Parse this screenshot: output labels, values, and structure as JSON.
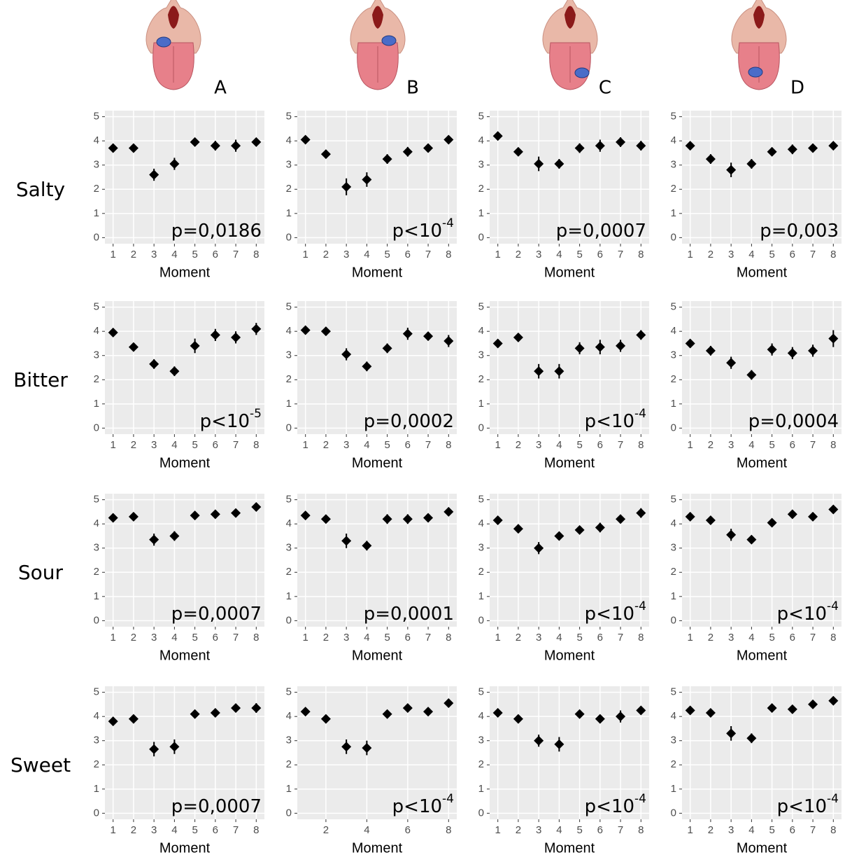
{
  "column_labels": [
    "A",
    "B",
    "C",
    "D"
  ],
  "row_labels": [
    "Salty",
    "Bitter",
    "Sour",
    "Sweet"
  ],
  "chart_data": [
    {
      "type": "errorbar",
      "x": [
        1,
        2,
        3,
        4,
        5,
        6,
        7,
        8
      ],
      "values": [
        3.7,
        3.7,
        2.6,
        3.05,
        3.95,
        3.8,
        3.8,
        3.95
      ],
      "errors": [
        0.15,
        0.15,
        0.25,
        0.25,
        0.1,
        0.2,
        0.25,
        0.15
      ],
      "xlabel": "Moment",
      "xlim": [
        0.6,
        8.4
      ],
      "ylim": [
        -0.25,
        5.25
      ],
      "xticks": [
        1,
        2,
        3,
        4,
        5,
        6,
        7,
        8
      ],
      "yticks": [
        0,
        1,
        2,
        3,
        4,
        5
      ],
      "annotation": "p=0,0186",
      "color": "#000000",
      "grid": true
    },
    {
      "type": "errorbar",
      "x": [
        1,
        2,
        3,
        4,
        5,
        6,
        7,
        8
      ],
      "values": [
        4.05,
        3.45,
        2.1,
        2.4,
        3.25,
        3.55,
        3.7,
        4.05
      ],
      "errors": [
        0.1,
        0.15,
        0.35,
        0.3,
        0.2,
        0.2,
        0.1,
        0.15
      ],
      "xlabel": "Moment",
      "xlim": [
        0.6,
        8.4
      ],
      "ylim": [
        -0.25,
        5.25
      ],
      "xticks": [
        1,
        2,
        3,
        4,
        5,
        6,
        7,
        8
      ],
      "yticks": [
        0,
        1,
        2,
        3,
        4,
        5
      ],
      "annotation": "p<10",
      "annotation_sup": "-4",
      "color": "#000000",
      "grid": true
    },
    {
      "type": "errorbar",
      "x": [
        1,
        2,
        3,
        4,
        5,
        6,
        7,
        8
      ],
      "values": [
        4.2,
        3.55,
        3.05,
        3.05,
        3.7,
        3.8,
        3.95,
        3.8
      ],
      "errors": [
        0.1,
        0.15,
        0.3,
        0.2,
        0.2,
        0.25,
        0.2,
        0.2
      ],
      "xlabel": "Moment",
      "xlim": [
        0.6,
        8.4
      ],
      "ylim": [
        -0.25,
        5.25
      ],
      "xticks": [
        1,
        2,
        3,
        4,
        5,
        6,
        7,
        8
      ],
      "yticks": [
        0,
        1,
        2,
        3,
        4,
        5
      ],
      "annotation": "p=0,0007",
      "color": "#000000",
      "grid": true
    },
    {
      "type": "errorbar",
      "x": [
        1,
        2,
        3,
        4,
        5,
        6,
        7,
        8
      ],
      "values": [
        3.8,
        3.25,
        2.8,
        3.05,
        3.55,
        3.65,
        3.7,
        3.8
      ],
      "errors": [
        0.1,
        0.2,
        0.3,
        0.2,
        0.15,
        0.2,
        0.15,
        0.15
      ],
      "xlabel": "Moment",
      "xlim": [
        0.6,
        8.4
      ],
      "ylim": [
        -0.25,
        5.25
      ],
      "xticks": [
        1,
        2,
        3,
        4,
        5,
        6,
        7,
        8
      ],
      "yticks": [
        0,
        1,
        2,
        3,
        4,
        5
      ],
      "annotation": "p=0,003",
      "color": "#000000",
      "grid": true
    },
    {
      "type": "errorbar",
      "x": [
        1,
        2,
        3,
        4,
        5,
        6,
        7,
        8
      ],
      "values": [
        3.95,
        3.35,
        2.65,
        2.35,
        3.4,
        3.85,
        3.75,
        4.1
      ],
      "errors": [
        0.15,
        0.15,
        0.2,
        0.2,
        0.3,
        0.25,
        0.25,
        0.25
      ],
      "xlabel": "Moment",
      "xlim": [
        0.6,
        8.4
      ],
      "ylim": [
        -0.25,
        5.25
      ],
      "xticks": [
        1,
        2,
        3,
        4,
        5,
        6,
        7,
        8
      ],
      "yticks": [
        0,
        1,
        2,
        3,
        4,
        5
      ],
      "annotation": "p<10",
      "annotation_sup": "-5",
      "color": "#000000",
      "grid": true
    },
    {
      "type": "errorbar",
      "x": [
        1,
        2,
        3,
        4,
        5,
        6,
        7,
        8
      ],
      "values": [
        4.05,
        4.0,
        3.05,
        2.55,
        3.3,
        3.9,
        3.8,
        3.6
      ],
      "errors": [
        0.1,
        0.15,
        0.25,
        0.2,
        0.2,
        0.25,
        0.15,
        0.25
      ],
      "xlabel": "Moment",
      "xlim": [
        0.6,
        8.4
      ],
      "ylim": [
        -0.25,
        5.25
      ],
      "xticks": [
        1,
        2,
        3,
        4,
        5,
        6,
        7,
        8
      ],
      "yticks": [
        0,
        1,
        2,
        3,
        4,
        5
      ],
      "annotation": "p=0,0002",
      "color": "#000000",
      "grid": true
    },
    {
      "type": "errorbar",
      "x": [
        1,
        2,
        3,
        4,
        5,
        6,
        7,
        8
      ],
      "values": [
        3.5,
        3.75,
        2.35,
        2.35,
        3.3,
        3.35,
        3.4,
        3.85
      ],
      "errors": [
        0.15,
        0.1,
        0.3,
        0.3,
        0.25,
        0.3,
        0.25,
        0.2
      ],
      "xlabel": "Moment",
      "xlim": [
        0.6,
        8.4
      ],
      "ylim": [
        -0.25,
        5.25
      ],
      "xticks": [
        1,
        2,
        3,
        4,
        5,
        6,
        7,
        8
      ],
      "yticks": [
        0,
        1,
        2,
        3,
        4,
        5
      ],
      "annotation": "p<10",
      "annotation_sup": "-4",
      "color": "#000000",
      "grid": true
    },
    {
      "type": "errorbar",
      "x": [
        1,
        2,
        3,
        4,
        5,
        6,
        7,
        8
      ],
      "values": [
        3.5,
        3.2,
        2.7,
        2.2,
        3.25,
        3.1,
        3.2,
        3.7
      ],
      "errors": [
        0.15,
        0.2,
        0.25,
        0.2,
        0.25,
        0.25,
        0.25,
        0.35
      ],
      "xlabel": "Moment",
      "xlim": [
        0.6,
        8.4
      ],
      "ylim": [
        -0.25,
        5.25
      ],
      "xticks": [
        1,
        2,
        3,
        4,
        5,
        6,
        7,
        8
      ],
      "yticks": [
        0,
        1,
        2,
        3,
        4,
        5
      ],
      "annotation": "p=0,0004",
      "color": "#000000",
      "grid": true
    },
    {
      "type": "errorbar",
      "x": [
        1,
        2,
        3,
        4,
        5,
        6,
        7,
        8
      ],
      "values": [
        4.25,
        4.3,
        3.35,
        3.5,
        4.35,
        4.4,
        4.45,
        4.7
      ],
      "errors": [
        0.1,
        0.1,
        0.25,
        0.2,
        0.1,
        0.15,
        0.1,
        0.15
      ],
      "xlabel": "Moment",
      "xlim": [
        0.6,
        8.4
      ],
      "ylim": [
        -0.25,
        5.25
      ],
      "xticks": [
        1,
        2,
        3,
        4,
        5,
        6,
        7,
        8
      ],
      "yticks": [
        0,
        1,
        2,
        3,
        4,
        5
      ],
      "annotation": "p=0,0007",
      "color": "#000000",
      "grid": true
    },
    {
      "type": "errorbar",
      "x": [
        1,
        2,
        3,
        4,
        5,
        6,
        7,
        8
      ],
      "values": [
        4.35,
        4.2,
        3.3,
        3.1,
        4.2,
        4.2,
        4.25,
        4.5
      ],
      "errors": [
        0.1,
        0.1,
        0.3,
        0.2,
        0.2,
        0.2,
        0.1,
        0.1
      ],
      "xlabel": "Moment",
      "xlim": [
        0.6,
        8.4
      ],
      "ylim": [
        -0.25,
        5.25
      ],
      "xticks": [
        1,
        2,
        3,
        4,
        5,
        6,
        7,
        8
      ],
      "yticks": [
        0,
        1,
        2,
        3,
        4,
        5
      ],
      "annotation": "p=0,0001",
      "color": "#000000",
      "grid": true
    },
    {
      "type": "errorbar",
      "x": [
        1,
        2,
        3,
        4,
        5,
        6,
        7,
        8
      ],
      "values": [
        4.15,
        3.8,
        3.0,
        3.5,
        3.75,
        3.85,
        4.2,
        4.45
      ],
      "errors": [
        0.1,
        0.15,
        0.25,
        0.1,
        0.15,
        0.2,
        0.1,
        0.2
      ],
      "xlabel": "Moment",
      "xlim": [
        0.6,
        8.4
      ],
      "ylim": [
        -0.25,
        5.25
      ],
      "xticks": [
        1,
        2,
        3,
        4,
        5,
        6,
        7,
        8
      ],
      "yticks": [
        0,
        1,
        2,
        3,
        4,
        5
      ],
      "annotation": "p<10",
      "annotation_sup": "-4",
      "color": "#000000",
      "grid": true
    },
    {
      "type": "errorbar",
      "x": [
        1,
        2,
        3,
        4,
        5,
        6,
        7,
        8
      ],
      "values": [
        4.3,
        4.15,
        3.55,
        3.35,
        4.05,
        4.4,
        4.3,
        4.6
      ],
      "errors": [
        0.1,
        0.15,
        0.25,
        0.15,
        0.15,
        0.1,
        0.1,
        0.1
      ],
      "xlabel": "Moment",
      "xlim": [
        0.6,
        8.4
      ],
      "ylim": [
        -0.25,
        5.25
      ],
      "xticks": [
        1,
        2,
        3,
        4,
        5,
        6,
        7,
        8
      ],
      "yticks": [
        0,
        1,
        2,
        3,
        4,
        5
      ],
      "annotation": "p<10",
      "annotation_sup": "-4",
      "color": "#000000",
      "grid": true
    },
    {
      "type": "errorbar",
      "x": [
        1,
        2,
        3,
        4,
        5,
        6,
        7,
        8
      ],
      "values": [
        3.8,
        3.9,
        2.65,
        2.75,
        4.1,
        4.15,
        4.35,
        4.35
      ],
      "errors": [
        0.1,
        0.1,
        0.3,
        0.3,
        0.1,
        0.15,
        0.1,
        0.2
      ],
      "xlabel": "Moment",
      "xlim": [
        0.6,
        8.4
      ],
      "ylim": [
        -0.25,
        5.25
      ],
      "xticks": [
        1,
        2,
        3,
        4,
        5,
        6,
        7,
        8
      ],
      "yticks": [
        0,
        1,
        2,
        3,
        4,
        5
      ],
      "annotation": "p=0,0007",
      "color": "#000000",
      "grid": true
    },
    {
      "type": "errorbar",
      "x": [
        1,
        2,
        3,
        4,
        5,
        6,
        7,
        8
      ],
      "values": [
        4.2,
        3.9,
        2.75,
        2.7,
        4.1,
        4.35,
        4.2,
        4.55
      ],
      "errors": [
        0.1,
        0.1,
        0.3,
        0.3,
        0.1,
        0.1,
        0.1,
        0.1
      ],
      "xlabel": "Moment",
      "xlim": [
        0.6,
        8.4
      ],
      "ylim": [
        -0.25,
        5.25
      ],
      "xticks": [
        2,
        4,
        6,
        8
      ],
      "yticks": [
        0,
        1,
        2,
        3,
        4,
        5
      ],
      "annotation": "p<10",
      "annotation_sup": "-4",
      "color": "#000000",
      "grid": true
    },
    {
      "type": "errorbar",
      "x": [
        1,
        2,
        3,
        4,
        5,
        6,
        7,
        8
      ],
      "values": [
        4.15,
        3.9,
        3.0,
        2.85,
        4.1,
        3.9,
        4.0,
        4.25
      ],
      "errors": [
        0.1,
        0.15,
        0.25,
        0.3,
        0.15,
        0.15,
        0.25,
        0.15
      ],
      "xlabel": "Moment",
      "xlim": [
        0.6,
        8.4
      ],
      "ylim": [
        -0.25,
        5.25
      ],
      "xticks": [
        1,
        2,
        3,
        4,
        5,
        6,
        7,
        8
      ],
      "yticks": [
        0,
        1,
        2,
        3,
        4,
        5
      ],
      "annotation": "p<10",
      "annotation_sup": "-4",
      "color": "#000000",
      "grid": true
    },
    {
      "type": "errorbar",
      "x": [
        1,
        2,
        3,
        4,
        5,
        6,
        7,
        8
      ],
      "values": [
        4.25,
        4.15,
        3.3,
        3.1,
        4.35,
        4.3,
        4.5,
        4.65
      ],
      "errors": [
        0.1,
        0.1,
        0.3,
        0.2,
        0.15,
        0.15,
        0.1,
        0.1
      ],
      "xlabel": "Moment",
      "xlim": [
        0.6,
        8.4
      ],
      "ylim": [
        -0.25,
        5.25
      ],
      "xticks": [
        1,
        2,
        3,
        4,
        5,
        6,
        7,
        8
      ],
      "yticks": [
        0,
        1,
        2,
        3,
        4,
        5
      ],
      "annotation": "p<10",
      "annotation_sup": "-4",
      "color": "#000000",
      "grid": true
    }
  ]
}
